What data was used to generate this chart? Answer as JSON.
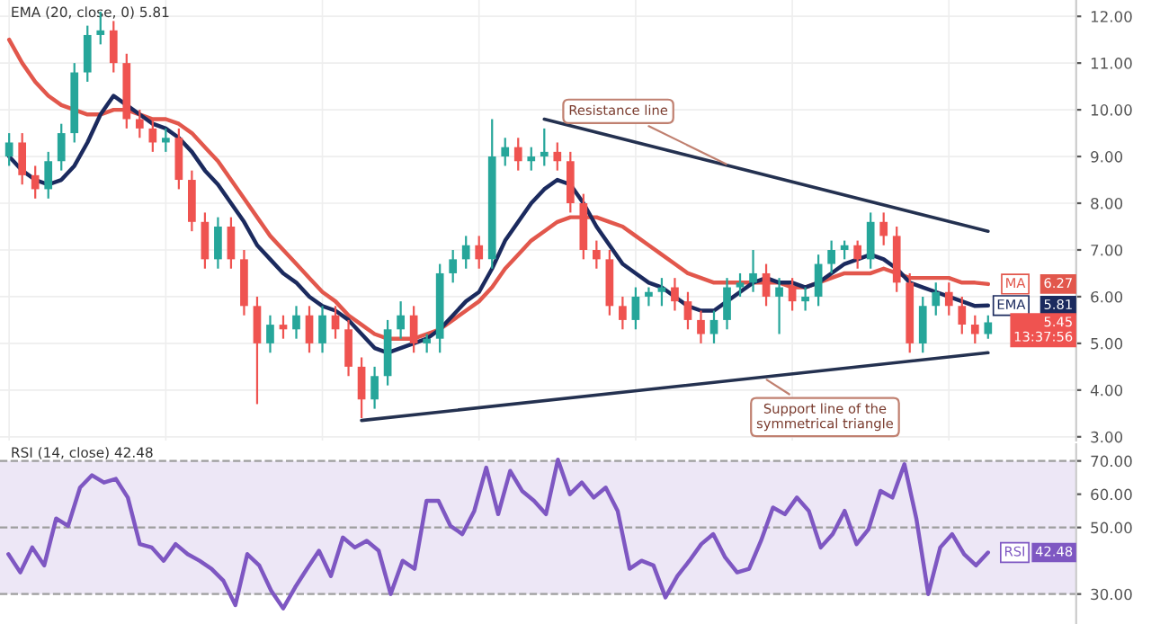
{
  "chart_data": [
    {
      "type": "candlestick",
      "title": "EMA (20, close, 0) 5.81",
      "categories": [
        null,
        null,
        null,
        null,
        null,
        null,
        null,
        null,
        null,
        null,
        null,
        null,
        null,
        null,
        null,
        null,
        null,
        null,
        null,
        null,
        null,
        null,
        null,
        null,
        null,
        null,
        null,
        null,
        null,
        null,
        null,
        null,
        null,
        null,
        null,
        null,
        null,
        null,
        null,
        null,
        null,
        null,
        null,
        null,
        null,
        null,
        null,
        null,
        null,
        null,
        null,
        null,
        null,
        null,
        null,
        null,
        null,
        null,
        null,
        null,
        null,
        null,
        null,
        null,
        null,
        null,
        null,
        null,
        null,
        null,
        null,
        null,
        null,
        null,
        null,
        null
      ],
      "ohlc": [
        [
          9.0,
          9.5,
          8.8,
          9.3
        ],
        [
          9.3,
          9.5,
          8.4,
          8.6
        ],
        [
          8.6,
          8.8,
          8.1,
          8.3
        ],
        [
          8.3,
          9.1,
          8.1,
          8.9
        ],
        [
          8.9,
          9.7,
          8.7,
          9.5
        ],
        [
          9.5,
          11.0,
          9.3,
          10.8
        ],
        [
          10.8,
          11.8,
          10.6,
          11.6
        ],
        [
          11.6,
          12.1,
          11.4,
          11.7
        ],
        [
          11.7,
          11.9,
          10.8,
          11.0
        ],
        [
          11.0,
          11.2,
          9.6,
          9.8
        ],
        [
          9.8,
          10.0,
          9.4,
          9.6
        ],
        [
          9.6,
          9.8,
          9.1,
          9.3
        ],
        [
          9.3,
          9.6,
          9.1,
          9.4
        ],
        [
          9.4,
          9.6,
          8.3,
          8.5
        ],
        [
          8.5,
          8.7,
          7.4,
          7.6
        ],
        [
          7.6,
          7.8,
          6.6,
          6.8
        ],
        [
          6.8,
          7.7,
          6.6,
          7.5
        ],
        [
          7.5,
          7.7,
          6.6,
          6.8
        ],
        [
          6.8,
          7.0,
          5.6,
          5.8
        ],
        [
          5.8,
          6.0,
          3.7,
          5.0
        ],
        [
          5.0,
          5.6,
          4.8,
          5.4
        ],
        [
          5.4,
          5.6,
          5.1,
          5.3
        ],
        [
          5.3,
          5.8,
          5.1,
          5.6
        ],
        [
          5.6,
          5.8,
          4.8,
          5.0
        ],
        [
          5.0,
          5.8,
          4.8,
          5.6
        ],
        [
          5.6,
          5.8,
          5.1,
          5.3
        ],
        [
          5.3,
          5.5,
          4.3,
          4.5
        ],
        [
          4.5,
          4.7,
          3.4,
          3.8
        ],
        [
          3.8,
          4.5,
          3.6,
          4.3
        ],
        [
          4.3,
          5.5,
          4.1,
          5.3
        ],
        [
          5.3,
          5.9,
          5.1,
          5.6
        ],
        [
          5.6,
          5.8,
          4.8,
          5.0
        ],
        [
          5.0,
          5.2,
          4.8,
          5.1
        ],
        [
          5.1,
          6.7,
          4.8,
          6.5
        ],
        [
          6.5,
          7.0,
          6.3,
          6.8
        ],
        [
          6.8,
          7.3,
          6.6,
          7.1
        ],
        [
          7.1,
          7.3,
          6.6,
          6.8
        ],
        [
          6.8,
          9.8,
          6.6,
          9.0
        ],
        [
          9.0,
          9.4,
          8.8,
          9.2
        ],
        [
          9.2,
          9.4,
          8.7,
          8.9
        ],
        [
          8.9,
          9.2,
          8.7,
          9.0
        ],
        [
          9.0,
          9.6,
          8.8,
          9.1
        ],
        [
          9.1,
          9.3,
          8.7,
          8.9
        ],
        [
          8.9,
          9.1,
          7.8,
          8.0
        ],
        [
          8.0,
          8.2,
          6.8,
          7.0
        ],
        [
          7.0,
          7.2,
          6.6,
          6.8
        ],
        [
          6.8,
          7.0,
          5.6,
          5.8
        ],
        [
          5.8,
          6.0,
          5.3,
          5.5
        ],
        [
          5.5,
          6.2,
          5.3,
          6.0
        ],
        [
          6.0,
          6.2,
          5.8,
          6.1
        ],
        [
          6.1,
          6.4,
          5.8,
          6.2
        ],
        [
          6.2,
          6.4,
          5.7,
          5.9
        ],
        [
          5.9,
          6.1,
          5.3,
          5.5
        ],
        [
          5.5,
          5.7,
          5.0,
          5.2
        ],
        [
          5.2,
          5.7,
          5.0,
          5.5
        ],
        [
          5.5,
          6.4,
          5.3,
          6.2
        ],
        [
          6.2,
          6.5,
          6.0,
          6.3
        ],
        [
          6.3,
          7.0,
          6.1,
          6.5
        ],
        [
          6.5,
          6.7,
          5.8,
          6.0
        ],
        [
          6.0,
          6.4,
          5.2,
          6.2
        ],
        [
          6.2,
          6.4,
          5.7,
          5.9
        ],
        [
          5.9,
          6.2,
          5.7,
          6.0
        ],
        [
          6.0,
          6.9,
          5.8,
          6.7
        ],
        [
          6.7,
          7.2,
          6.5,
          7.0
        ],
        [
          7.0,
          7.2,
          6.8,
          7.1
        ],
        [
          7.1,
          7.2,
          6.6,
          6.8
        ],
        [
          6.8,
          7.8,
          6.6,
          7.6
        ],
        [
          7.6,
          7.8,
          7.1,
          7.3
        ],
        [
          7.3,
          7.5,
          6.1,
          6.3
        ],
        [
          6.3,
          6.5,
          4.8,
          5.0
        ],
        [
          5.0,
          6.0,
          4.8,
          5.8
        ],
        [
          5.8,
          6.3,
          5.6,
          6.1
        ],
        [
          6.1,
          6.3,
          5.6,
          5.8
        ],
        [
          5.8,
          6.0,
          5.2,
          5.4
        ],
        [
          5.4,
          5.6,
          5.0,
          5.2
        ],
        [
          5.2,
          5.6,
          5.1,
          5.45
        ]
      ],
      "series": [
        {
          "name": "MA",
          "type": "line",
          "color": "#e2574c",
          "values": [
            11.5,
            11.0,
            10.6,
            10.3,
            10.1,
            10.0,
            9.9,
            9.9,
            10.0,
            10.0,
            9.9,
            9.8,
            9.8,
            9.7,
            9.5,
            9.2,
            8.9,
            8.5,
            8.1,
            7.7,
            7.3,
            7.0,
            6.7,
            6.4,
            6.1,
            5.9,
            5.6,
            5.4,
            5.2,
            5.1,
            5.1,
            5.1,
            5.2,
            5.3,
            5.5,
            5.7,
            5.9,
            6.2,
            6.6,
            6.9,
            7.2,
            7.4,
            7.6,
            7.7,
            7.7,
            7.7,
            7.6,
            7.5,
            7.3,
            7.1,
            6.9,
            6.7,
            6.5,
            6.4,
            6.3,
            6.3,
            6.3,
            6.3,
            6.3,
            6.3,
            6.2,
            6.2,
            6.3,
            6.4,
            6.5,
            6.5,
            6.5,
            6.6,
            6.5,
            6.4,
            6.4,
            6.4,
            6.4,
            6.3,
            6.3,
            6.27
          ]
        },
        {
          "name": "EMA",
          "type": "line",
          "color": "#1b2a5e",
          "values": [
            9.0,
            8.7,
            8.5,
            8.4,
            8.5,
            8.8,
            9.3,
            9.9,
            10.3,
            10.1,
            9.9,
            9.7,
            9.6,
            9.4,
            9.1,
            8.7,
            8.4,
            8.0,
            7.6,
            7.1,
            6.8,
            6.5,
            6.3,
            6.0,
            5.8,
            5.7,
            5.5,
            5.2,
            4.9,
            4.8,
            4.9,
            5.0,
            5.1,
            5.3,
            5.6,
            5.9,
            6.1,
            6.6,
            7.2,
            7.6,
            8.0,
            8.3,
            8.5,
            8.4,
            8.0,
            7.5,
            7.1,
            6.7,
            6.5,
            6.3,
            6.2,
            6.0,
            5.8,
            5.7,
            5.7,
            5.9,
            6.1,
            6.3,
            6.4,
            6.3,
            6.3,
            6.2,
            6.3,
            6.5,
            6.7,
            6.8,
            6.9,
            6.8,
            6.6,
            6.3,
            6.2,
            6.1,
            6.0,
            5.9,
            5.8,
            5.81
          ]
        },
        {
          "type": "line",
          "color": "#243150",
          "values": [
            null,
            null,
            null,
            null,
            null,
            null,
            null,
            null,
            null,
            null,
            null,
            null,
            null,
            null,
            null,
            null,
            null,
            null,
            null,
            null,
            null,
            null,
            null,
            null,
            null,
            null,
            null,
            null,
            null,
            null,
            null,
            null,
            null,
            null,
            null,
            null,
            null,
            null,
            null,
            null,
            null,
            9.8,
            null,
            null,
            null,
            null,
            null,
            null,
            null,
            null,
            null,
            null,
            null,
            null,
            null,
            null,
            null,
            null,
            null,
            null,
            null,
            null,
            null,
            null,
            null,
            null,
            null,
            null,
            null,
            null,
            null,
            null,
            null,
            null,
            null,
            7.4
          ]
        },
        {
          "type": "line",
          "color": "#243150",
          "values": [
            null,
            null,
            null,
            null,
            null,
            null,
            null,
            null,
            null,
            null,
            null,
            null,
            null,
            null,
            null,
            null,
            null,
            null,
            null,
            null,
            null,
            null,
            null,
            null,
            null,
            null,
            null,
            3.35,
            null,
            null,
            null,
            null,
            null,
            null,
            null,
            null,
            null,
            null,
            null,
            null,
            null,
            null,
            null,
            null,
            null,
            null,
            null,
            null,
            null,
            null,
            null,
            null,
            null,
            null,
            null,
            null,
            null,
            null,
            null,
            null,
            null,
            null,
            null,
            null,
            null,
            null,
            null,
            null,
            null,
            null,
            null,
            null,
            null,
            null,
            null,
            4.8
          ]
        }
      ],
      "annotations": [
        "Resistance line",
        "Support line of the\nsymmetrical triangle",
        "6.27",
        "5.81",
        "5.45\n13:37:56"
      ],
      "ylim": [
        2.92,
        12.35
      ],
      "yticks": [
        {
          "value": 3,
          "label": "3.00"
        },
        {
          "value": 4,
          "label": "4.00"
        },
        {
          "value": 5,
          "label": "5.00"
        },
        {
          "value": 6,
          "label": "6.00"
        },
        {
          "value": 7,
          "label": "7.00"
        },
        {
          "value": 8,
          "label": "8.00"
        },
        {
          "value": 9,
          "label": "9.00"
        },
        {
          "value": 10,
          "label": "10.00"
        },
        {
          "value": 11,
          "label": "11.00"
        },
        {
          "value": 12,
          "label": "12.00"
        }
      ],
      "grid": true,
      "legend": "right",
      "tick_labels": "y"
    },
    {
      "type": "line",
      "title": "RSI (14, close) 42.48",
      "categories": [
        null,
        null,
        null,
        null,
        null,
        null,
        null,
        null,
        null,
        null,
        null,
        null,
        null,
        null,
        null,
        null,
        null,
        null,
        null,
        null,
        null,
        null,
        null,
        null,
        null,
        null,
        null,
        null,
        null,
        null,
        null,
        null,
        null,
        null,
        null,
        null,
        null,
        null,
        null,
        null,
        null,
        null,
        null,
        null,
        null,
        null,
        null,
        null,
        null,
        null,
        null,
        null,
        null,
        null,
        null,
        null,
        null,
        null,
        null,
        null,
        null,
        null,
        null,
        null,
        null,
        null,
        null,
        null,
        null,
        null,
        null,
        null,
        null,
        null,
        null,
        null,
        null,
        null,
        null,
        null,
        null,
        null,
        null
      ],
      "series": [
        {
          "name": "RSI",
          "color": "#7e57c2",
          "values": [
            42,
            36.5,
            44,
            38.6,
            52.7,
            50.5,
            62,
            65.7,
            63.5,
            64.6,
            59,
            45,
            44,
            40,
            45,
            42,
            40,
            37.6,
            34,
            26.7,
            42,
            38.6,
            31,
            25.7,
            32,
            37.6,
            43,
            35.4,
            47,
            44,
            46,
            43,
            30,
            40,
            37.6,
            58,
            58,
            50.5,
            48,
            55,
            68,
            54,
            67,
            61,
            58,
            54,
            70.4,
            60,
            63.5,
            59,
            62,
            55,
            37.6,
            40,
            38.6,
            29,
            35.4,
            40,
            45,
            48,
            41,
            36.5,
            37.6,
            46,
            56,
            54,
            59,
            55,
            44,
            48,
            55,
            45,
            49.5,
            61,
            59,
            69,
            52.7,
            30,
            44,
            48,
            42,
            38.6,
            42.48
          ]
        }
      ],
      "annotations": [
        "42.48"
      ],
      "bands": [
        {
          "axis": "y",
          "from": 30,
          "to": 70,
          "color": "#ede7f6"
        }
      ],
      "ref_lines": [
        {
          "axis": "y",
          "value": 30,
          "color": "#9e9e9e",
          "line_style": "dashed"
        },
        {
          "axis": "y",
          "value": 50,
          "color": "#9e9e9e",
          "line_style": "dashed"
        },
        {
          "axis": "y",
          "value": 70,
          "color": "#9e9e9e",
          "line_style": "dashed"
        }
      ],
      "ylim": [
        21,
        75
      ],
      "yticks": [
        {
          "value": 30,
          "label": "30.00"
        },
        {
          "value": 50,
          "label": "50.00"
        },
        {
          "value": 60,
          "label": "60.00"
        },
        {
          "value": 70,
          "label": "70.00"
        }
      ],
      "legend": "right",
      "tick_labels": "y"
    }
  ]
}
